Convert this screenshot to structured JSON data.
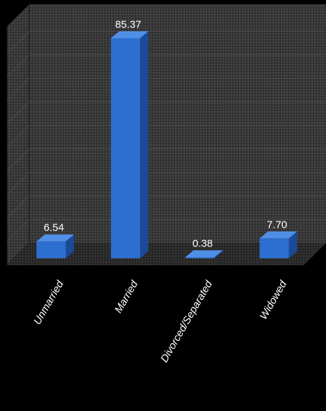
{
  "chart_data": {
    "type": "bar",
    "style": "3d",
    "categories": [
      "Unmarried",
      "Married",
      "Divorced/Separated",
      "Widowed"
    ],
    "values": [
      6.54,
      85.37,
      0.38,
      7.7
    ],
    "data_labels": [
      "6.54",
      "85.37",
      "0.38",
      "7.70"
    ],
    "ylim": [
      0,
      90
    ],
    "grid": true,
    "legend": "none",
    "colors": {
      "bar_front": "#2d6fd0",
      "bar_side": "#1b4a97",
      "bar_top": "#4f8fe6",
      "wall": "#3a3a3a",
      "floor": "#2c2c2c",
      "background": "#000000",
      "text": "#ffffff"
    }
  }
}
